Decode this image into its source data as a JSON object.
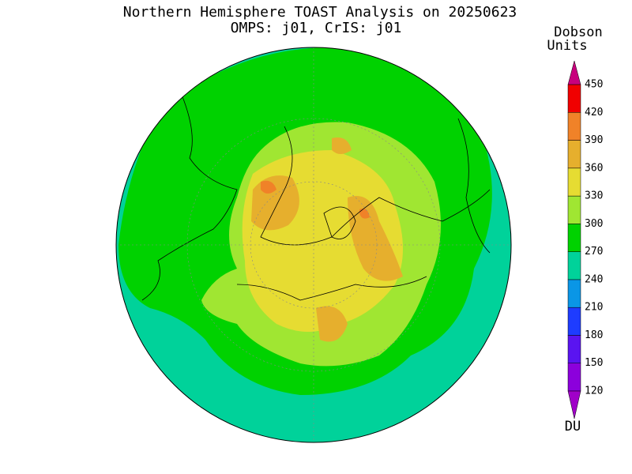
{
  "header": {
    "title": "Northern Hemisphere TOAST Analysis on 20250623",
    "subtitle": "OMPS: j01, CrIS: j01"
  },
  "colorbar": {
    "title_line1": "Dobson",
    "title_line2": "Units",
    "unit": "DU",
    "ticks": [
      120,
      150,
      180,
      210,
      240,
      270,
      300,
      330,
      360,
      390,
      420,
      450
    ],
    "colors": [
      "#8c00dc",
      "#5a14f0",
      "#1e3cff",
      "#0a96e6",
      "#00d29a",
      "#00d200",
      "#a0e632",
      "#e6dc32",
      "#e6af2d",
      "#f08228",
      "#f00000"
    ],
    "under_color": "#a000c8",
    "over_color": "#c8007d"
  }
}
